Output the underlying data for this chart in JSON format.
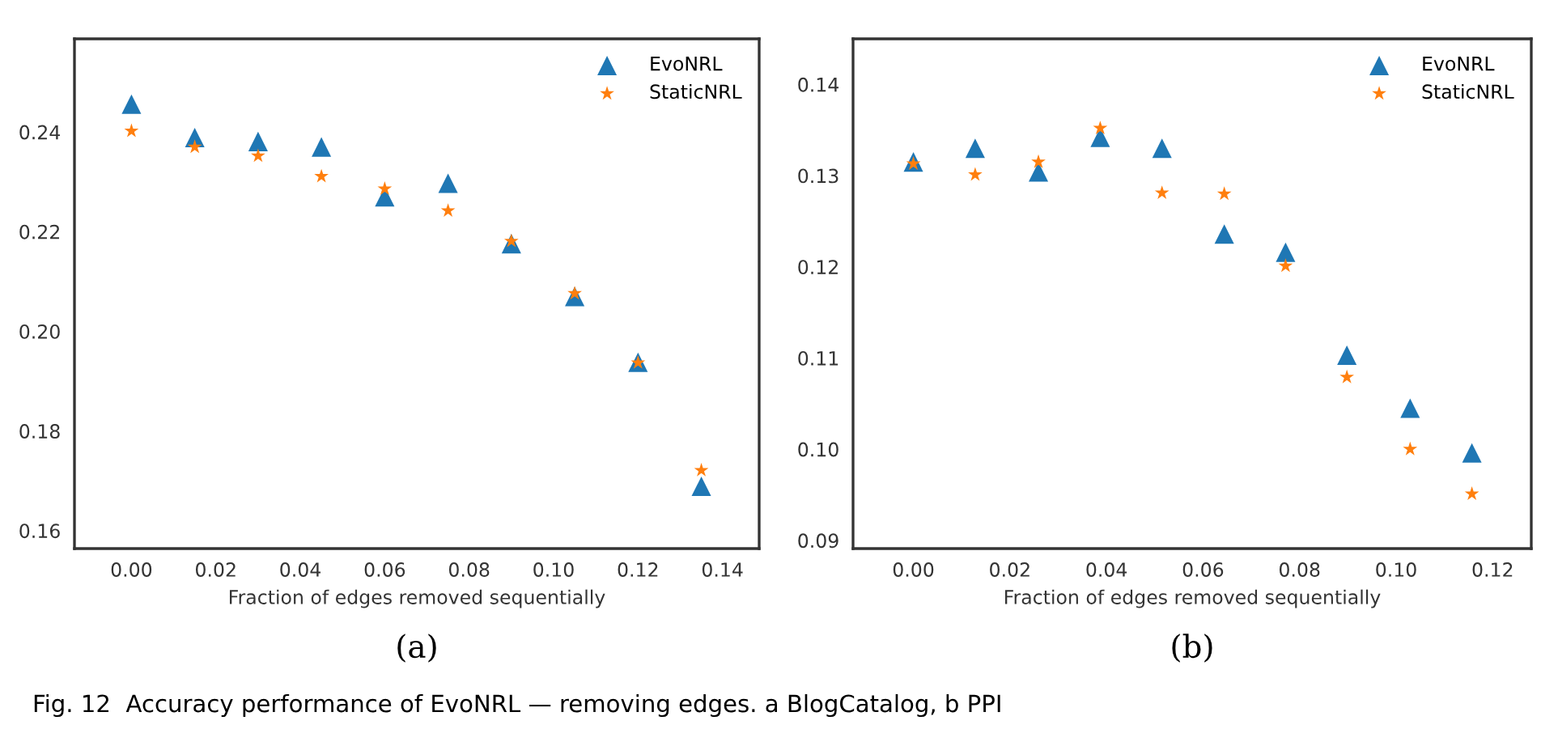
{
  "chart_data": [
    {
      "type": "scatter",
      "xlabel": "Fraction of edges removed sequentially",
      "legend": "top right",
      "grid": false,
      "xlim": [
        -0.0135,
        0.1487
      ],
      "ylim": [
        0.1564,
        0.2587
      ],
      "xticks": [
        {
          "value": 0,
          "label": "0.00"
        },
        {
          "value": 0.02,
          "label": "0.02"
        },
        {
          "value": 0.04,
          "label": "0.04"
        },
        {
          "value": 0.06,
          "label": "0.06"
        },
        {
          "value": 0.08,
          "label": "0.08"
        },
        {
          "value": 0.1,
          "label": "0.10"
        },
        {
          "value": 0.12,
          "label": "0.12"
        },
        {
          "value": 0.14,
          "label": "0.14"
        }
      ],
      "yticks": [
        {
          "value": 0.16,
          "label": "0.16"
        },
        {
          "value": 0.18,
          "label": "0.18"
        },
        {
          "value": 0.2,
          "label": "0.20"
        },
        {
          "value": 0.22,
          "label": "0.22"
        },
        {
          "value": 0.24,
          "label": "0.24"
        }
      ],
      "x": [
        0,
        0.015,
        0.03,
        0.045,
        0.06,
        0.075,
        0.09,
        0.105,
        0.12,
        0.135
      ],
      "series": [
        {
          "name": "EvoNRL",
          "color": "#1f77b4",
          "marker": "triangle",
          "values": [
            0.2456,
            0.2389,
            0.2381,
            0.237,
            0.227,
            0.2297,
            0.2176,
            0.207,
            0.1938,
            0.1689
          ]
        },
        {
          "name": "StaticNRL",
          "color": "#ff7f0e",
          "marker": "star",
          "values": [
            0.2402,
            0.237,
            0.2352,
            0.2311,
            0.2286,
            0.2242,
            0.2181,
            0.2076,
            0.1937,
            0.1721
          ]
        }
      ],
      "annotations": [
        "(a)",
        "Fig. 12  Accuracy performance of EvoNRL — removing edges. a BlogCatalog, b PPI"
      ]
    },
    {
      "type": "scatter",
      "xlabel": "Fraction of edges removed sequentially",
      "legend": "top right",
      "grid": false,
      "xlim": [
        -0.0125,
        0.128
      ],
      "ylim": [
        0.0891,
        0.145
      ],
      "xticks": [
        {
          "value": 0,
          "label": "0.00"
        },
        {
          "value": 0.02,
          "label": "0.02"
        },
        {
          "value": 0.04,
          "label": "0.04"
        },
        {
          "value": 0.06,
          "label": "0.06"
        },
        {
          "value": 0.08,
          "label": "0.08"
        },
        {
          "value": 0.1,
          "label": "0.10"
        },
        {
          "value": 0.12,
          "label": "0.12"
        }
      ],
      "yticks": [
        {
          "value": 0.09,
          "label": "0.09"
        },
        {
          "value": 0.1,
          "label": "0.10"
        },
        {
          "value": 0.11,
          "label": "0.11"
        },
        {
          "value": 0.12,
          "label": "0.12"
        },
        {
          "value": 0.13,
          "label": "0.13"
        },
        {
          "value": 0.14,
          "label": "0.14"
        }
      ],
      "x": [
        0,
        0.0128,
        0.0259,
        0.0387,
        0.0515,
        0.0644,
        0.0771,
        0.0898,
        0.1029,
        0.1157
      ],
      "series": [
        {
          "name": "EvoNRL",
          "color": "#1f77b4",
          "marker": "triangle",
          "values": [
            0.1315,
            0.133,
            0.1304,
            0.1342,
            0.133,
            0.1236,
            0.1216,
            0.1103,
            0.1045,
            0.0996
          ]
        },
        {
          "name": "StaticNRL",
          "color": "#ff7f0e",
          "marker": "star",
          "values": [
            0.1313,
            0.1301,
            0.1315,
            0.1352,
            0.1281,
            0.128,
            0.1201,
            0.1079,
            0.1,
            0.0951
          ]
        }
      ],
      "annotations": [
        "(b)"
      ]
    }
  ]
}
